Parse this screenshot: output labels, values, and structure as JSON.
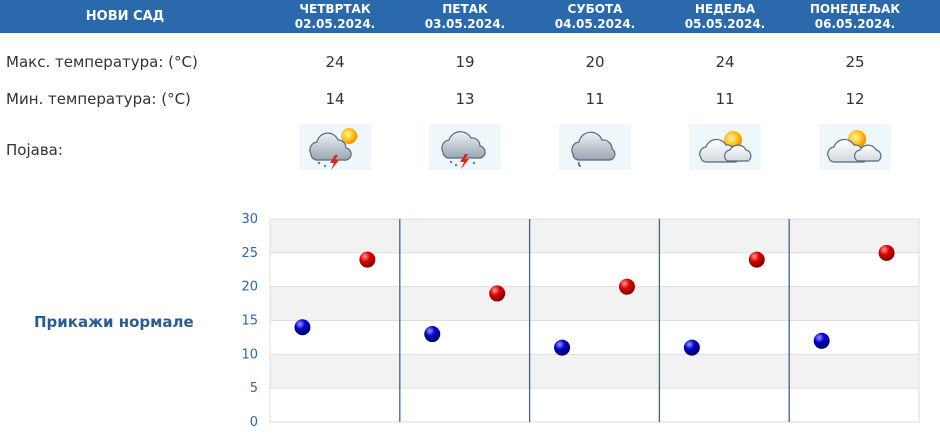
{
  "header": {
    "city": "НОВИ САД",
    "days": [
      {
        "name": "ЧЕТВРТАК",
        "date": "02.05.2024."
      },
      {
        "name": "ПЕТАК",
        "date": "03.05.2024."
      },
      {
        "name": "СУБОТА",
        "date": "04.05.2024."
      },
      {
        "name": "НЕДЕЉА",
        "date": "05.05.2024."
      },
      {
        "name": "ПОНЕДЕЉАК",
        "date": "06.05.2024."
      }
    ]
  },
  "rows": {
    "max_label": "Макс. температура: (°C)",
    "min_label": "Мин. температура: (°C)",
    "weather_label": "Појава:",
    "max": [
      "24",
      "19",
      "20",
      "24",
      "25"
    ],
    "min": [
      "14",
      "13",
      "11",
      "11",
      "12"
    ],
    "icons": [
      "thunderstorm-sun-icon",
      "thunderstorm-icon",
      "cloud-drizzle-icon",
      "partly-cloudy-icon",
      "partly-cloudy-icon"
    ]
  },
  "normals_link": "Прикажи нормале",
  "colors": {
    "header_bg": "#2a69ac",
    "max_marker": "#cc0000",
    "min_marker": "#0000aa"
  },
  "chart_data": {
    "type": "scatter",
    "categories": [
      "02.05.2024.",
      "03.05.2024.",
      "04.05.2024.",
      "05.05.2024.",
      "06.05.2024."
    ],
    "series": [
      {
        "values": [
          14,
          13,
          11,
          11,
          12
        ],
        "color": "#0000aa"
      },
      {
        "values": [
          24,
          19,
          20,
          24,
          25
        ],
        "color": "#cc0000"
      }
    ],
    "ylim": [
      0,
      30
    ],
    "yticks": [
      "0",
      "5",
      "10",
      "15",
      "20",
      "25",
      "30"
    ],
    "grid": true
  }
}
